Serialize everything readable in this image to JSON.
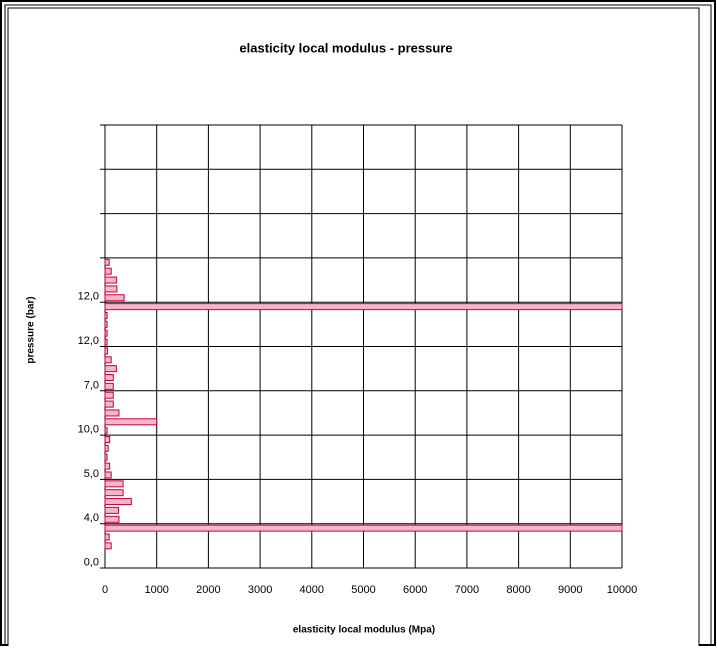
{
  "chart_data": {
    "type": "bar",
    "orientation": "horizontal",
    "title": "elasticity local modulus - pressure",
    "x_label": "elasticity local modulus (Mpa)",
    "y_label": "pressure (bar)",
    "categories": [
      "0,0",
      null,
      null,
      null,
      null,
      "4,0",
      null,
      null,
      null,
      null,
      "5,0",
      null,
      null,
      null,
      null,
      "10,0",
      null,
      null,
      null,
      null,
      "7,0",
      null,
      null,
      null,
      null,
      "12,0",
      null,
      null,
      null,
      null,
      "12,0",
      null,
      null,
      null,
      null,
      null,
      null,
      null,
      null,
      null,
      null,
      null,
      null,
      null,
      null,
      null,
      null,
      null,
      null,
      null
    ],
    "values": [
      0,
      0,
      120,
      80,
      10000,
      270,
      260,
      510,
      350,
      350,
      120,
      90,
      40,
      60,
      90,
      40,
      1000,
      270,
      160,
      160,
      160,
      160,
      220,
      120,
      50,
      40,
      40,
      40,
      40,
      10000,
      370,
      230,
      220,
      120,
      80,
      null,
      null,
      null,
      null,
      null,
      null,
      null,
      null,
      null,
      null,
      null,
      null,
      null,
      null,
      null
    ],
    "color": "#f2b8c6",
    "edge_color": "#c8003c",
    "xlim": [
      0,
      10000
    ],
    "xticks": [
      0,
      1000,
      2000,
      3000,
      4000,
      5000,
      6000,
      7000,
      8000,
      9000,
      10000
    ],
    "grid": true
  }
}
